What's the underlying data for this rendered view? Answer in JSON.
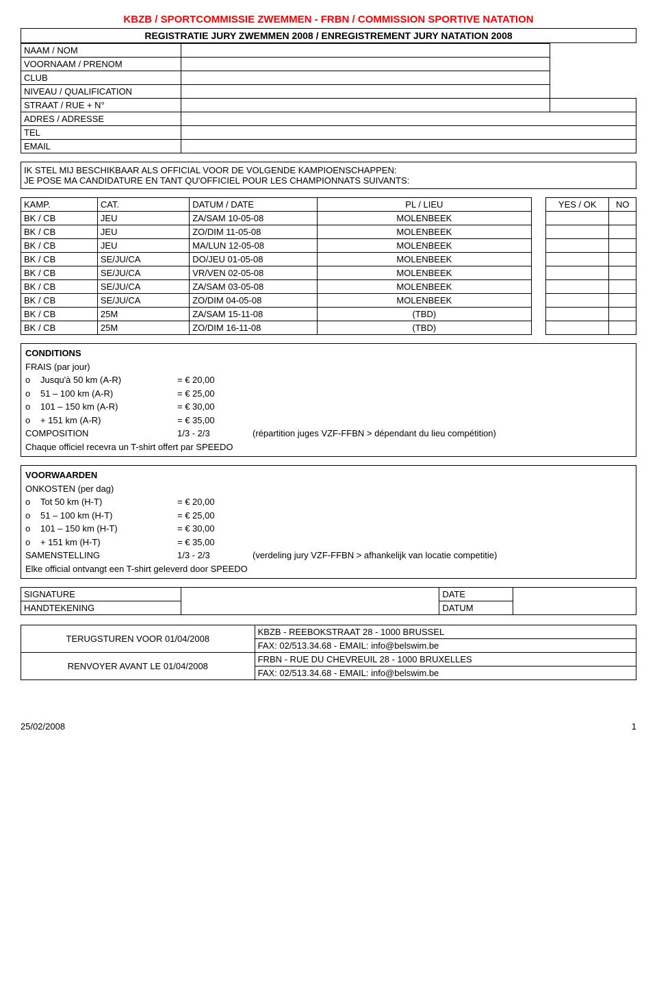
{
  "header": {
    "main_title": "KBZB / SPORTCOMMISSIE ZWEMMEN - FRBN / COMMISSION SPORTIVE NATATION",
    "sub_title": "REGISTRATIE JURY ZWEMMEN 2008 / ENREGISTREMENT JURY NATATION 2008"
  },
  "info_labels": {
    "naam": "NAAM / NOM",
    "voornaam": "VOORNAAM / PRENOM",
    "club": "CLUB",
    "niveau": "NIVEAU / QUALIFICATION",
    "straat": "STRAAT / RUE + N°",
    "adres": "ADRES / ADRESSE",
    "tel": "TEL",
    "email": "EMAIL"
  },
  "notice": {
    "line1": "IK STEL MIJ BESCHIKBAAR ALS OFFICIAL VOOR DE VOLGENDE KAMPIOENSCHAPPEN:",
    "line2": "JE POSE MA CANDIDATURE EN TANT QU'OFFICIEL POUR LES CHAMPIONNATS SUIVANTS:"
  },
  "kamp": {
    "headers": {
      "c1": "KAMP.",
      "c2": "CAT.",
      "c3": "DATUM / DATE",
      "c4": "PL / LIEU",
      "yes": "YES / OK",
      "no": "NO"
    },
    "rows": [
      {
        "c1": "BK / CB",
        "c2": "JEU",
        "c3": "ZA/SAM 10-05-08",
        "c4": "MOLENBEEK"
      },
      {
        "c1": "BK / CB",
        "c2": "JEU",
        "c3": "ZO/DIM 11-05-08",
        "c4": "MOLENBEEK"
      },
      {
        "c1": "BK / CB",
        "c2": "JEU",
        "c3": "MA/LUN 12-05-08",
        "c4": "MOLENBEEK"
      },
      {
        "c1": "BK / CB",
        "c2": "SE/JU/CA",
        "c3": "DO/JEU 01-05-08",
        "c4": "MOLENBEEK"
      },
      {
        "c1": "BK / CB",
        "c2": "SE/JU/CA",
        "c3": "VR/VEN 02-05-08",
        "c4": "MOLENBEEK"
      },
      {
        "c1": "BK / CB",
        "c2": "SE/JU/CA",
        "c3": "ZA/SAM 03-05-08",
        "c4": "MOLENBEEK"
      },
      {
        "c1": "BK / CB",
        "c2": "SE/JU/CA",
        "c3": "ZO/DIM 04-05-08",
        "c4": "MOLENBEEK"
      },
      {
        "c1": "BK / CB",
        "c2": "25M",
        "c3": "ZA/SAM 15-11-08",
        "c4": "(TBD)"
      },
      {
        "c1": "BK / CB",
        "c2": "25M",
        "c3": "ZO/DIM 16-11-08",
        "c4": "(TBD)"
      }
    ]
  },
  "conditions_fr": {
    "title": "CONDITIONS",
    "frais": "FRAIS (par jour)",
    "rows": [
      {
        "b": "o",
        "d": "Jusqu'à 50 km (A-R)",
        "a": "= € 20,00"
      },
      {
        "b": "o",
        "d": "51 – 100 km (A-R)",
        "a": "= € 25,00"
      },
      {
        "b": "o",
        "d": "101 – 150 km (A-R)",
        "a": "= € 30,00"
      },
      {
        "b": "o",
        "d": "+ 151 km (A-R)",
        "a": "= € 35,00"
      }
    ],
    "comp_label": "COMPOSITION",
    "comp_frac": "1/3 - 2/3",
    "comp_note": "(répartition juges VZF-FFBN > dépendant du lieu compétition)",
    "tshirt": "Chaque officiel recevra un T-shirt offert par SPEEDO"
  },
  "conditions_nl": {
    "title": "VOORWAARDEN",
    "onkosten": "ONKOSTEN (per dag)",
    "rows": [
      {
        "b": "o",
        "d": "Tot 50 km (H-T)",
        "a": "= € 20,00"
      },
      {
        "b": "o",
        "d": "51 – 100 km (H-T)",
        "a": "= € 25,00"
      },
      {
        "b": "o",
        "d": "101 – 150 km (H-T)",
        "a": "= € 30,00"
      },
      {
        "b": "o",
        "d": "+ 151 km (H-T)",
        "a": "= € 35,00"
      }
    ],
    "comp_label": "SAMENSTELLING",
    "comp_frac": "1/3 - 2/3",
    "comp_note": "(verdeling jury VZF-FFBN > afhankelijk van locatie competitie)",
    "tshirt": "Elke official ontvangt een T-shirt geleverd door SPEEDO"
  },
  "signature": {
    "sig": "SIGNATURE",
    "hand": "HANDTEKENING",
    "date": "DATE",
    "datum": "DATUM"
  },
  "return": {
    "nl_label": "TERUGSTUREN VOOR 01/04/2008",
    "nl_line1": "KBZB - REEBOKSTRAAT 28 - 1000 BRUSSEL",
    "nl_line2": "FAX: 02/513.34.68 - EMAIL: info@belswim.be",
    "fr_label": "RENVOYER AVANT LE 01/04/2008",
    "fr_line1": "FRBN - RUE DU CHEVREUIL 28 - 1000 BRUXELLES",
    "fr_line2": "FAX: 02/513.34.68 - EMAIL: info@belswim.be"
  },
  "footer": {
    "date": "25/02/2008",
    "page": "1"
  }
}
